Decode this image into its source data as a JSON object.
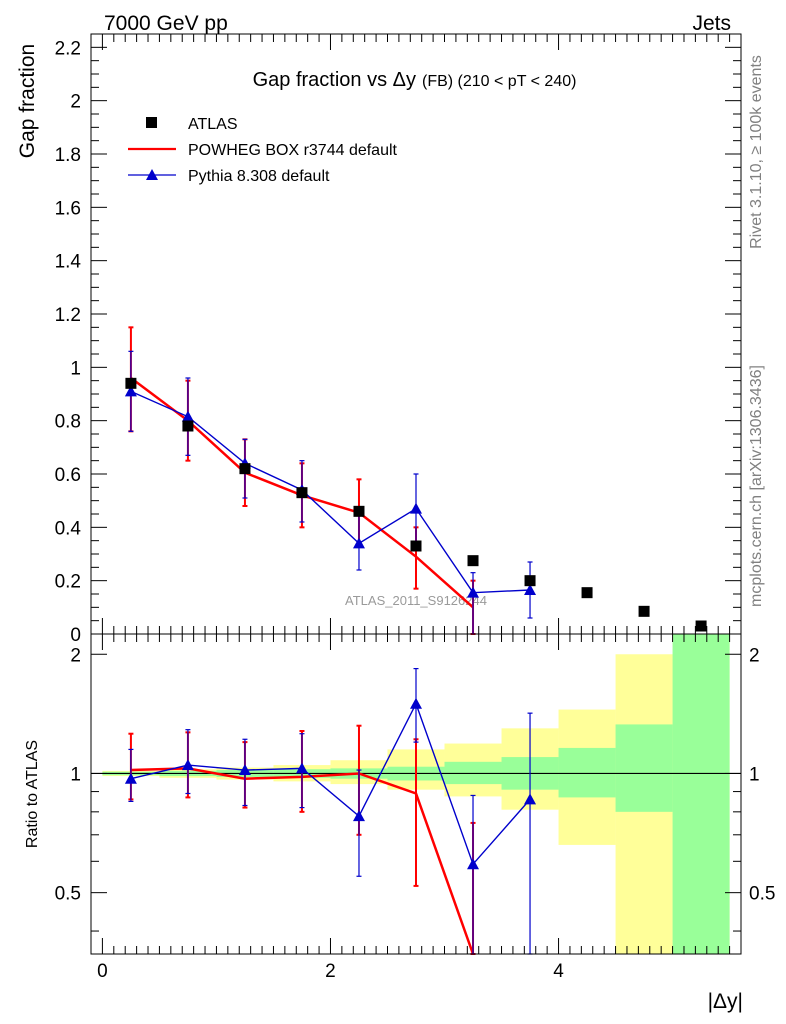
{
  "header": {
    "left": "7000 GeV pp",
    "right": "Jets"
  },
  "side_labels": {
    "rivet": "Rivet 3.1.10, ≥ 100k events",
    "mcplots": "mcplots.cern.ch [arXiv:1306.3436]"
  },
  "watermark": "ATLAS_2011_S9126244",
  "colors": {
    "atlas": "#000000",
    "powheg": "#ff0000",
    "pythia": "#0000cc",
    "band_inner": "#99ff99",
    "band_outer": "#ffff99"
  },
  "chart_data": [
    {
      "type": "scatter",
      "title": "Gap fraction vs Δy",
      "title_suffix": "(FB) (210 < pT < 240)",
      "ylabel": "Gap fraction",
      "xlim": [
        -0.1,
        5.6
      ],
      "ylim": [
        0,
        2.25
      ],
      "yticks": [
        "0",
        "0.2",
        "0.4",
        "0.6",
        "0.8",
        "1",
        "1.2",
        "1.4",
        "1.6",
        "1.8",
        "2",
        "2.2"
      ],
      "legend_position": "top-left",
      "series": [
        {
          "name": "ATLAS",
          "style": "markers",
          "x": [
            0.25,
            0.75,
            1.25,
            1.75,
            2.25,
            2.75,
            3.25,
            3.75,
            4.25,
            4.75,
            5.25
          ],
          "y": [
            0.94,
            0.78,
            0.62,
            0.53,
            0.46,
            0.33,
            0.275,
            0.2,
            0.155,
            0.085,
            0.03
          ]
        },
        {
          "name": "POWHEG BOX r3744 default",
          "style": "line",
          "x": [
            0.25,
            0.75,
            1.25,
            1.75,
            2.25,
            2.75,
            3.25
          ],
          "y": [
            0.96,
            0.8,
            0.605,
            0.52,
            0.455,
            0.29,
            0.1
          ],
          "err_lo": [
            0.76,
            0.65,
            0.48,
            0.4,
            0.33,
            0.17,
            0.0
          ],
          "err_hi": [
            1.15,
            0.95,
            0.73,
            0.64,
            0.58,
            0.4,
            0.2
          ]
        },
        {
          "name": "Pythia 8.308 default",
          "style": "line-triangles",
          "x": [
            0.25,
            0.75,
            1.25,
            1.75,
            2.25,
            2.75,
            3.25,
            3.75
          ],
          "y": [
            0.91,
            0.815,
            0.64,
            0.54,
            0.34,
            0.47,
            0.155,
            0.165
          ],
          "err_lo": [
            0.76,
            0.67,
            0.51,
            0.42,
            0.24,
            0.34,
            0.0,
            0.06
          ],
          "err_hi": [
            1.06,
            0.96,
            0.73,
            0.65,
            0.45,
            0.6,
            0.23,
            0.27
          ]
        }
      ]
    },
    {
      "type": "line",
      "ylabel": "Ratio to ATLAS",
      "xlabel": "|Δy|",
      "xlim": [
        -0.1,
        5.6
      ],
      "ylim": [
        0.35,
        2.25
      ],
      "xticks": [
        "0",
        "2",
        "4"
      ],
      "yticks": [
        "0.5",
        "1",
        "2"
      ],
      "reference_line": 1,
      "band": {
        "x_edges": [
          0,
          0.5,
          1,
          1.5,
          2,
          2.5,
          3,
          3.5,
          4,
          4.5,
          5,
          5.5
        ],
        "inner_lo": [
          0.99,
          0.985,
          0.98,
          0.975,
          0.97,
          0.96,
          0.94,
          0.91,
          0.87,
          0.8,
          0.35
        ],
        "inner_hi": [
          1.01,
          1.015,
          1.02,
          1.025,
          1.03,
          1.04,
          1.07,
          1.1,
          1.16,
          1.33,
          2.25
        ],
        "outer_lo": [
          0.985,
          0.975,
          0.965,
          0.955,
          0.94,
          0.91,
          0.875,
          0.81,
          0.66,
          0.35,
          0.35
        ],
        "outer_hi": [
          1.015,
          1.025,
          1.035,
          1.05,
          1.08,
          1.15,
          1.19,
          1.3,
          1.45,
          2.0,
          2.25
        ]
      },
      "series": [
        {
          "name": "POWHEG BOX r3744 default",
          "x": [
            0.25,
            0.75,
            1.25,
            1.75,
            2.25,
            2.75,
            3.25
          ],
          "y": [
            1.02,
            1.03,
            0.97,
            0.98,
            1.0,
            0.89,
            0.35
          ],
          "err_lo": [
            0.86,
            0.87,
            0.82,
            0.8,
            0.7,
            0.52,
            0.35
          ],
          "err_hi": [
            1.26,
            1.27,
            1.2,
            1.28,
            1.32,
            1.22,
            0.75
          ]
        },
        {
          "name": "Pythia 8.308 default",
          "x": [
            0.25,
            0.75,
            1.25,
            1.75,
            2.25,
            2.75,
            3.25,
            3.75
          ],
          "y": [
            0.97,
            1.05,
            1.02,
            1.03,
            0.78,
            1.5,
            0.59,
            0.86
          ],
          "err_lo": [
            0.85,
            0.89,
            0.83,
            0.82,
            0.55,
            1.2,
            0.35,
            0.35
          ],
          "err_hi": [
            1.15,
            1.29,
            1.22,
            1.26,
            1.02,
            1.84,
            0.88,
            1.42
          ]
        }
      ]
    }
  ]
}
